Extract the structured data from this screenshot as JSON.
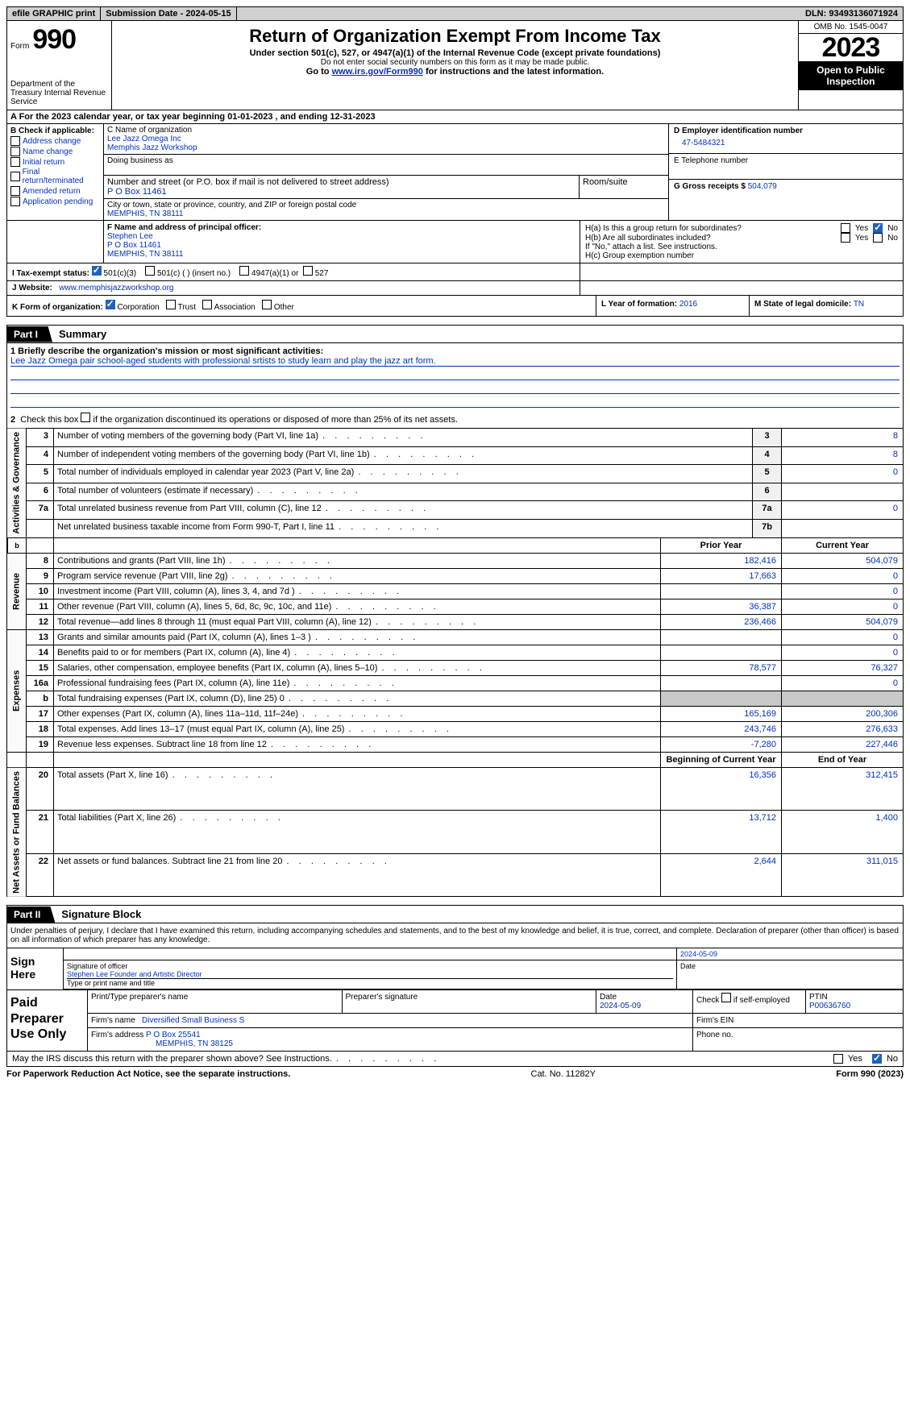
{
  "top_bar": {
    "efile": "efile GRAPHIC print",
    "submission": "Submission Date - 2024-05-15",
    "dln": "DLN: 93493136071924"
  },
  "header": {
    "form_word": "Form",
    "form_num": "990",
    "title": "Return of Organization Exempt From Income Tax",
    "subtitle": "Under section 501(c), 527, or 4947(a)(1) of the Internal Revenue Code (except private foundations)",
    "ssn_note": "Do not enter social security numbers on this form as it may be made public.",
    "goto_prefix": "Go to ",
    "goto_link": "www.irs.gov/Form990",
    "goto_suffix": " for instructions and the latest information.",
    "dept": "Department of the Treasury Internal Revenue Service",
    "omb": "OMB No. 1545-0047",
    "year": "2023",
    "open": "Open to Public Inspection"
  },
  "section_a": "A For the 2023 calendar year, or tax year beginning 01-01-2023    , and ending 12-31-2023",
  "col_b": {
    "header": "B Check if applicable:",
    "options": [
      "Address change",
      "Name change",
      "Initial return",
      "Final return/terminated",
      "Amended return",
      "Application pending"
    ]
  },
  "col_c": {
    "name_label": "C Name of organization",
    "name1": "Lee Jazz Omega Inc",
    "name2": "Memphis Jazz Workshop",
    "dba_label": "Doing business as",
    "street_label": "Number and street (or P.O. box if mail is not delivered to street address)",
    "street": "P O Box 11461",
    "room_label": "Room/suite",
    "city_label": "City or town, state or province, country, and ZIP or foreign postal code",
    "city": "MEMPHIS, TN   38111"
  },
  "col_d": {
    "ein_label": "D Employer identification number",
    "ein": "47-5484321",
    "phone_label": "E Telephone number",
    "gross_label": "G Gross receipts $ ",
    "gross": "504,079"
  },
  "row_f": {
    "label": "F  Name and address of principal officer:",
    "name": "Stephen Lee",
    "addr1": "P O Box 11461",
    "addr2": "MEMPHIS, TN  38111"
  },
  "row_h": {
    "ha": "H(a)  Is this a group return for subordinates?",
    "hb": "H(b)  Are all subordinates included?",
    "hb_note": "If \"No,\" attach a list. See instructions.",
    "hc": "H(c)  Group exemption number"
  },
  "row_i": {
    "label": "I    Tax-exempt status:",
    "opt1": "501(c)(3)",
    "opt2": "501(c) (  ) (insert no.)",
    "opt3": "4947(a)(1) or",
    "opt4": "527"
  },
  "row_j": {
    "label": "J    Website:",
    "value": "www.memphisjazzworkshop.org"
  },
  "row_k": {
    "label": "K Form of organization:",
    "opts": [
      "Corporation",
      "Trust",
      "Association",
      "Other"
    ],
    "l_label": "L Year of formation: ",
    "l_val": "2016",
    "m_label": "M State of legal domicile: ",
    "m_val": "TN"
  },
  "part1": {
    "tag": "Part I",
    "title": "Summary",
    "mission_label": "1   Briefly describe the organization's mission or most significant activities:",
    "mission": "Lee Jazz Omega pair school-aged students with professional srtists to study learn and play the jazz art form.",
    "line2": "Check this box        if the organization discontinued its operations or disposed of more than 25% of its net assets.",
    "governance": "Activities & Governance",
    "revenue": "Revenue",
    "expenses": "Expenses",
    "netassets": "Net Assets or Fund Balances",
    "prior_year": "Prior Year",
    "current_year": "Current Year",
    "begin_year": "Beginning of Current Year",
    "end_year": "End of Year",
    "rows_gov": [
      {
        "n": "3",
        "d": "Number of voting members of the governing body (Part VI, line 1a)",
        "ln": "3",
        "v": "8"
      },
      {
        "n": "4",
        "d": "Number of independent voting members of the governing body (Part VI, line 1b)",
        "ln": "4",
        "v": "8"
      },
      {
        "n": "5",
        "d": "Total number of individuals employed in calendar year 2023 (Part V, line 2a)",
        "ln": "5",
        "v": "0"
      },
      {
        "n": "6",
        "d": "Total number of volunteers (estimate if necessary)",
        "ln": "6",
        "v": ""
      },
      {
        "n": "7a",
        "d": "Total unrelated business revenue from Part VIII, column (C), line 12",
        "ln": "7a",
        "v": "0"
      },
      {
        "n": "",
        "d": "Net unrelated business taxable income from Form 990-T, Part I, line 11",
        "ln": "7b",
        "v": ""
      }
    ],
    "rows_rev": [
      {
        "n": "8",
        "d": "Contributions and grants (Part VIII, line 1h)",
        "p": "182,416",
        "c": "504,079"
      },
      {
        "n": "9",
        "d": "Program service revenue (Part VIII, line 2g)",
        "p": "17,663",
        "c": "0"
      },
      {
        "n": "10",
        "d": "Investment income (Part VIII, column (A), lines 3, 4, and 7d )",
        "p": "",
        "c": "0"
      },
      {
        "n": "11",
        "d": "Other revenue (Part VIII, column (A), lines 5, 6d, 8c, 9c, 10c, and 11e)",
        "p": "36,387",
        "c": "0"
      },
      {
        "n": "12",
        "d": "Total revenue—add lines 8 through 11 (must equal Part VIII, column (A), line 12)",
        "p": "236,466",
        "c": "504,079"
      }
    ],
    "rows_exp": [
      {
        "n": "13",
        "d": "Grants and similar amounts paid (Part IX, column (A), lines 1–3 )",
        "p": "",
        "c": "0"
      },
      {
        "n": "14",
        "d": "Benefits paid to or for members (Part IX, column (A), line 4)",
        "p": "",
        "c": "0"
      },
      {
        "n": "15",
        "d": "Salaries, other compensation, employee benefits (Part IX, column (A), lines 5–10)",
        "p": "78,577",
        "c": "76,327"
      },
      {
        "n": "16a",
        "d": "Professional fundraising fees (Part IX, column (A), line 11e)",
        "p": "",
        "c": "0"
      },
      {
        "n": "b",
        "d": "Total fundraising expenses (Part IX, column (D), line 25) 0",
        "p": "shaded",
        "c": "shaded"
      },
      {
        "n": "17",
        "d": "Other expenses (Part IX, column (A), lines 11a–11d, 11f–24e)",
        "p": "165,169",
        "c": "200,306"
      },
      {
        "n": "18",
        "d": "Total expenses. Add lines 13–17 (must equal Part IX, column (A), line 25)",
        "p": "243,746",
        "c": "276,633"
      },
      {
        "n": "19",
        "d": "Revenue less expenses. Subtract line 18 from line 12",
        "p": "-7,280",
        "c": "227,446"
      }
    ],
    "rows_net": [
      {
        "n": "20",
        "d": "Total assets (Part X, line 16)",
        "p": "16,356",
        "c": "312,415"
      },
      {
        "n": "21",
        "d": "Total liabilities (Part X, line 26)",
        "p": "13,712",
        "c": "1,400"
      },
      {
        "n": "22",
        "d": "Net assets or fund balances. Subtract line 21 from line 20",
        "p": "2,644",
        "c": "311,015"
      }
    ]
  },
  "part2": {
    "tag": "Part II",
    "title": "Signature Block",
    "penalty": "Under penalties of perjury, I declare that I have examined this return, including accompanying schedules and statements, and to the best of my knowledge and belief, it is true, correct, and complete. Declaration of preparer (other than officer) is based on all information of which preparer has any knowledge.",
    "sign_here": "Sign Here",
    "sig_date": "2024-05-09",
    "sig_officer_label": "Signature of officer",
    "sig_officer": "Stephen Lee  Founder and Artistic Director",
    "sig_name_label": "Type or print name and title",
    "date_label": "Date",
    "paid_prep": "Paid Preparer Use Only",
    "prep_name_label": "Print/Type preparer's name",
    "prep_sig_label": "Preparer's signature",
    "prep_date": "2024-05-09",
    "prep_check": "Check        if self-employed",
    "ptin_label": "PTIN",
    "ptin": "P00636760",
    "firm_name_label": "Firm's name",
    "firm_name": "Diversified Small Business S",
    "firm_ein_label": "Firm's EIN",
    "firm_addr_label": "Firm's address",
    "firm_addr1": "P O Box 25541",
    "firm_addr2": "MEMPHIS, TN  38125",
    "phone_label": "Phone no."
  },
  "footer": {
    "discuss": "May the IRS discuss this return with the preparer shown above? See Instructions.",
    "paperwork": "For Paperwork Reduction Act Notice, see the separate instructions.",
    "catno": "Cat. No. 11282Y",
    "form": "Form 990 (2023)"
  }
}
